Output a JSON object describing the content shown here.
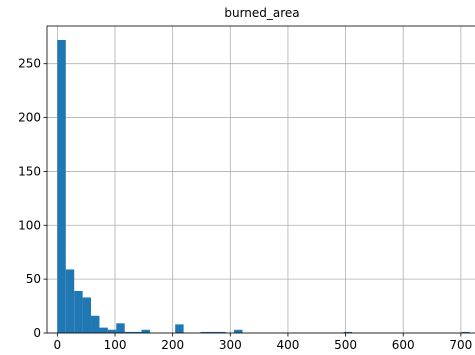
{
  "chart_data": {
    "type": "bar",
    "title": "burned_area",
    "xlabel": "",
    "ylabel": "",
    "xlim": [
      -18,
      728
    ],
    "ylim": [
      0,
      285
    ],
    "x_ticks": [
      0,
      100,
      200,
      300,
      400,
      500,
      600,
      700
    ],
    "y_ticks": [
      0,
      50,
      100,
      150,
      200,
      250
    ],
    "bin_width": 14.6,
    "bins": [
      {
        "x0": 0.0,
        "count": 272
      },
      {
        "x0": 14.6,
        "count": 59
      },
      {
        "x0": 29.2,
        "count": 39
      },
      {
        "x0": 43.8,
        "count": 33
      },
      {
        "x0": 58.4,
        "count": 16
      },
      {
        "x0": 73.0,
        "count": 5
      },
      {
        "x0": 87.6,
        "count": 3
      },
      {
        "x0": 102.2,
        "count": 9
      },
      {
        "x0": 116.8,
        "count": 1
      },
      {
        "x0": 131.4,
        "count": 1
      },
      {
        "x0": 146.0,
        "count": 3
      },
      {
        "x0": 160.6,
        "count": 0
      },
      {
        "x0": 175.2,
        "count": 0
      },
      {
        "x0": 189.8,
        "count": 0
      },
      {
        "x0": 204.4,
        "count": 8
      },
      {
        "x0": 219.0,
        "count": 0
      },
      {
        "x0": 233.6,
        "count": 0
      },
      {
        "x0": 248.2,
        "count": 1
      },
      {
        "x0": 262.8,
        "count": 1
      },
      {
        "x0": 277.4,
        "count": 1
      },
      {
        "x0": 292.0,
        "count": 0
      },
      {
        "x0": 306.6,
        "count": 3
      },
      {
        "x0": 496.6,
        "count": 1
      },
      {
        "x0": 701.1,
        "count": 1
      }
    ],
    "grid": true,
    "bar_color": "#1f77b4"
  }
}
